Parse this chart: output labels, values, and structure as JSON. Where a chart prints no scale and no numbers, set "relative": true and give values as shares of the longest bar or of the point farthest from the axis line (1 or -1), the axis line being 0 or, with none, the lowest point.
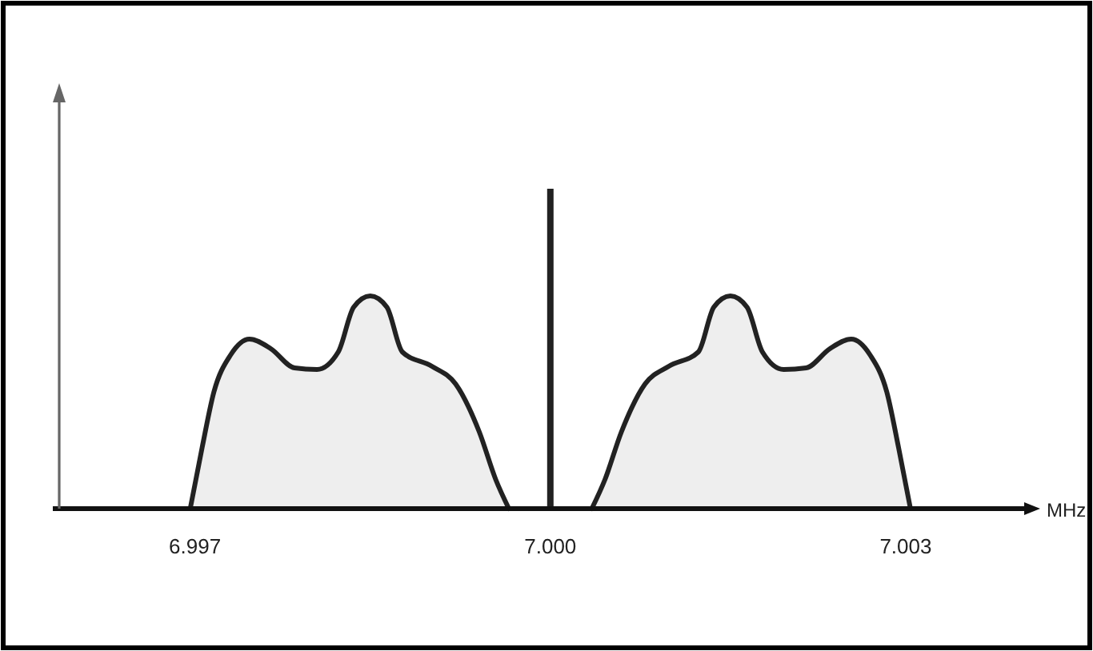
{
  "chart_data": {
    "type": "area",
    "relative": true,
    "xlabel": "MHz",
    "xlim": [
      6.9958,
      7.004
    ],
    "xticks": [
      {
        "value": 6.997,
        "label": "6.997"
      },
      {
        "value": 7.0,
        "label": "7.000"
      },
      {
        "value": 7.003,
        "label": "7.003"
      }
    ],
    "series": [
      {
        "color": "#222222",
        "x": [
          6.99696,
          6.99706,
          6.99716,
          6.9973,
          6.99746,
          6.99764,
          6.99784,
          6.99803,
          6.99821,
          6.99834,
          6.99848,
          6.99862,
          6.99875,
          6.999,
          6.9992,
          6.9994,
          6.99954,
          6.99965
        ],
        "values": [
          0,
          0.19,
          0.365,
          0.48,
          0.53,
          0.5,
          0.44,
          0.435,
          0.49,
          0.63,
          0.665,
          0.63,
          0.49,
          0.445,
          0.39,
          0.24,
          0.09,
          0
        ]
      },
      {
        "type": "bar",
        "color": "#222222",
        "x": [
          7.0
        ],
        "values": [
          1
        ]
      },
      {
        "color": "#222222",
        "x": [
          7.00035,
          7.00046,
          7.0006,
          7.0008,
          7.001,
          7.00125,
          7.00138,
          7.00152,
          7.00166,
          7.00179,
          7.00197,
          7.00216,
          7.00236,
          7.00254,
          7.0027,
          7.00284,
          7.00294,
          7.00304
        ],
        "values": [
          0,
          0.09,
          0.24,
          0.39,
          0.445,
          0.49,
          0.63,
          0.665,
          0.63,
          0.49,
          0.435,
          0.44,
          0.5,
          0.53,
          0.48,
          0.365,
          0.19,
          0
        ]
      }
    ]
  }
}
